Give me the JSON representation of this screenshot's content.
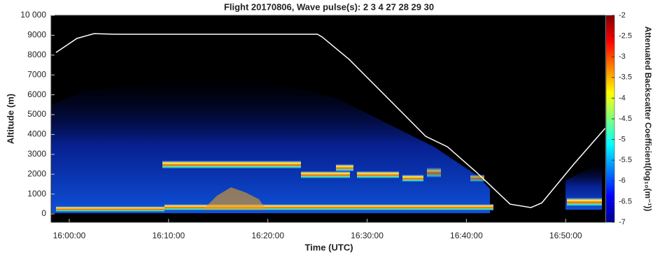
{
  "chart_data": {
    "type": "line",
    "title": "Flight 20170806, Wave pulse(s): 2   3   4  27  28  29  30",
    "xlabel": "Time (UTC)",
    "ylabel": "Altitude (m)",
    "x": [
      -1.34,
      0.77,
      2.5,
      4.6,
      14.1,
      25,
      25.5,
      28.2,
      32.4,
      35.9,
      38.1,
      40.9,
      44.4,
      46.5,
      47.6,
      50.8,
      54.0
    ],
    "series": [
      {
        "color": "#ffffff",
        "values": [
          8130,
          8840,
          9080,
          9050,
          9050,
          9050,
          8900,
          7780,
          5670,
          3910,
          3380,
          2150,
          490,
          320,
          560,
          2500,
          4330
        ]
      }
    ],
    "xlim": [
      -1.83,
      54.0
    ],
    "xticks": [
      {
        "value": 0,
        "label": "16:00:00"
      },
      {
        "value": 10,
        "label": "16:10:00"
      },
      {
        "value": 20,
        "label": "16:20:00"
      },
      {
        "value": 30,
        "label": "16:30:00"
      },
      {
        "value": 40,
        "label": "16:40:00"
      },
      {
        "value": 50,
        "label": "16:50:00"
      }
    ],
    "ylim": [
      -420,
      10000
    ],
    "yticks": [
      0,
      1000,
      2000,
      3000,
      4000,
      5000,
      6000,
      7000,
      8000,
      9000,
      {
        "value": 10000,
        "label": "10 000"
      }
    ],
    "colorbar": {
      "label": "Attenuated Backscatter Coefficient(log₁₀(m⁻¹))",
      "colormap": "jet",
      "lim": [
        -7,
        -2
      ],
      "ticks": [
        -2,
        -2.5,
        -3,
        -3.5,
        -4,
        -4.5,
        -5,
        -5.5,
        -6,
        -6.5,
        -7
      ]
    }
  }
}
